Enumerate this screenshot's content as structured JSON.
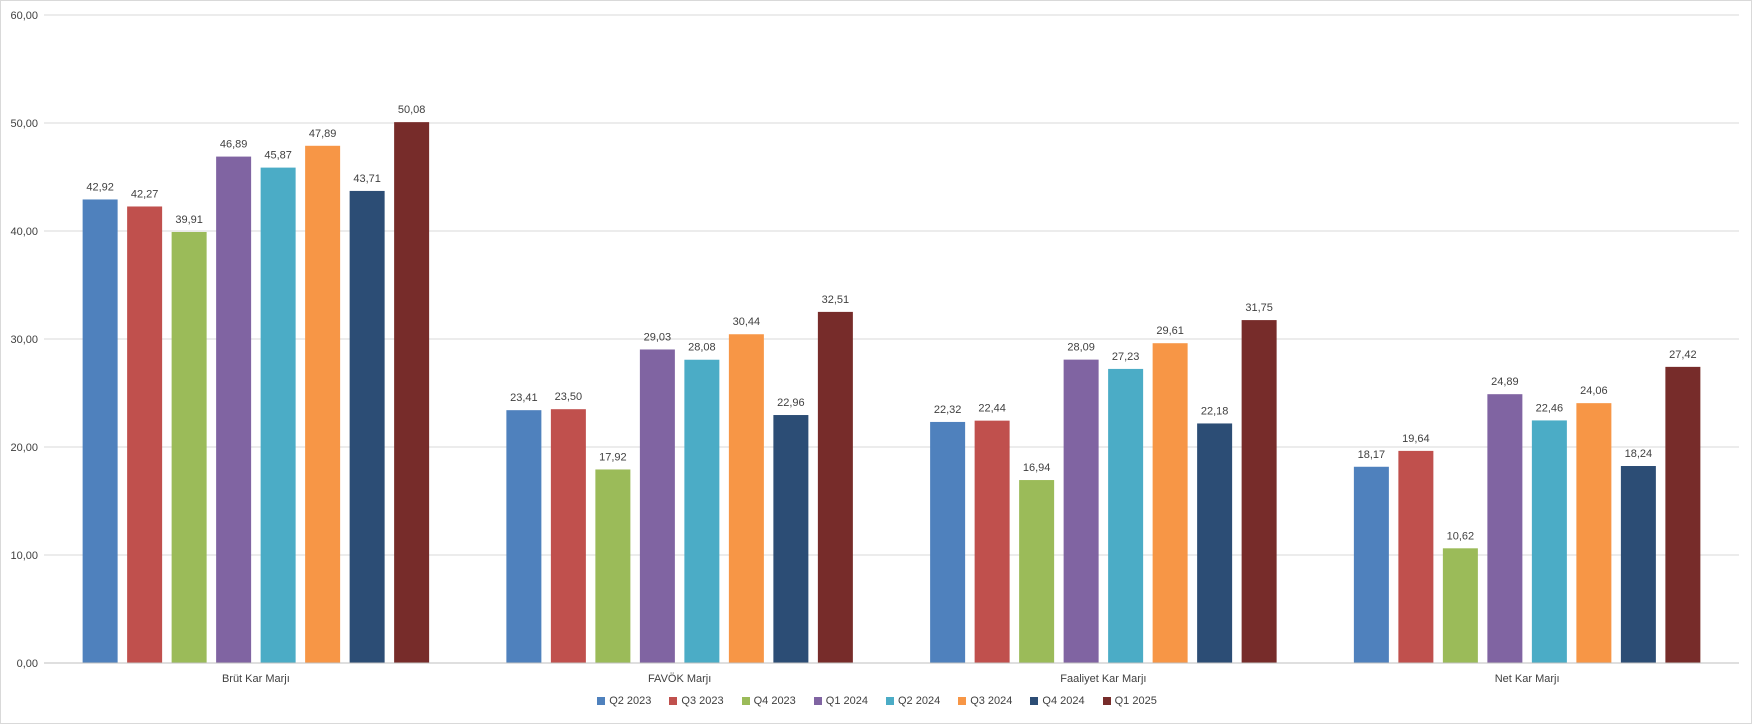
{
  "chart_data": {
    "type": "bar",
    "title": "",
    "xlabel": "",
    "ylabel": "",
    "ylim": [
      0,
      60
    ],
    "y_ticks": [
      "0,00",
      "10,00",
      "20,00",
      "30,00",
      "40,00",
      "50,00",
      "60,00"
    ],
    "grid": true,
    "legend_position": "bottom",
    "categories": [
      "Brüt Kar Marjı",
      "FAVÖK Marjı",
      "Faaliyet Kar Marjı",
      "Net Kar Marjı"
    ],
    "series": [
      {
        "name": "Q2 2023",
        "color": "#4F81BD",
        "values": [
          42.92,
          23.41,
          22.32,
          18.17
        ],
        "labels": [
          "42,92",
          "23,41",
          "22,32",
          "18,17"
        ]
      },
      {
        "name": "Q3 2023",
        "color": "#C0504D",
        "values": [
          42.27,
          23.5,
          22.44,
          19.64
        ],
        "labels": [
          "42,27",
          "23,50",
          "22,44",
          "19,64"
        ]
      },
      {
        "name": "Q4 2023",
        "color": "#9BBB59",
        "values": [
          39.91,
          17.92,
          16.94,
          10.62
        ],
        "labels": [
          "39,91",
          "17,92",
          "16,94",
          "10,62"
        ]
      },
      {
        "name": "Q1 2024",
        "color": "#8064A2",
        "values": [
          46.89,
          29.03,
          28.09,
          24.89
        ],
        "labels": [
          "46,89",
          "29,03",
          "28,09",
          "24,89"
        ]
      },
      {
        "name": "Q2 2024",
        "color": "#4BACC6",
        "values": [
          45.87,
          28.08,
          27.23,
          22.46
        ],
        "labels": [
          "45,87",
          "28,08",
          "27,23",
          "22,46"
        ]
      },
      {
        "name": "Q3 2024",
        "color": "#F79646",
        "values": [
          47.89,
          30.44,
          29.61,
          24.06
        ],
        "labels": [
          "47,89",
          "30,44",
          "29,61",
          "24,06"
        ]
      },
      {
        "name": "Q4 2024",
        "color": "#2C4D75",
        "values": [
          43.71,
          22.96,
          22.18,
          18.24
        ],
        "labels": [
          "43,71",
          "22,96",
          "22,18",
          "18,24"
        ]
      },
      {
        "name": "Q1 2025",
        "color": "#772C2A",
        "values": [
          50.08,
          32.51,
          31.75,
          27.42
        ],
        "labels": [
          "50,08",
          "32,51",
          "31,75",
          "27,42"
        ]
      }
    ]
  }
}
